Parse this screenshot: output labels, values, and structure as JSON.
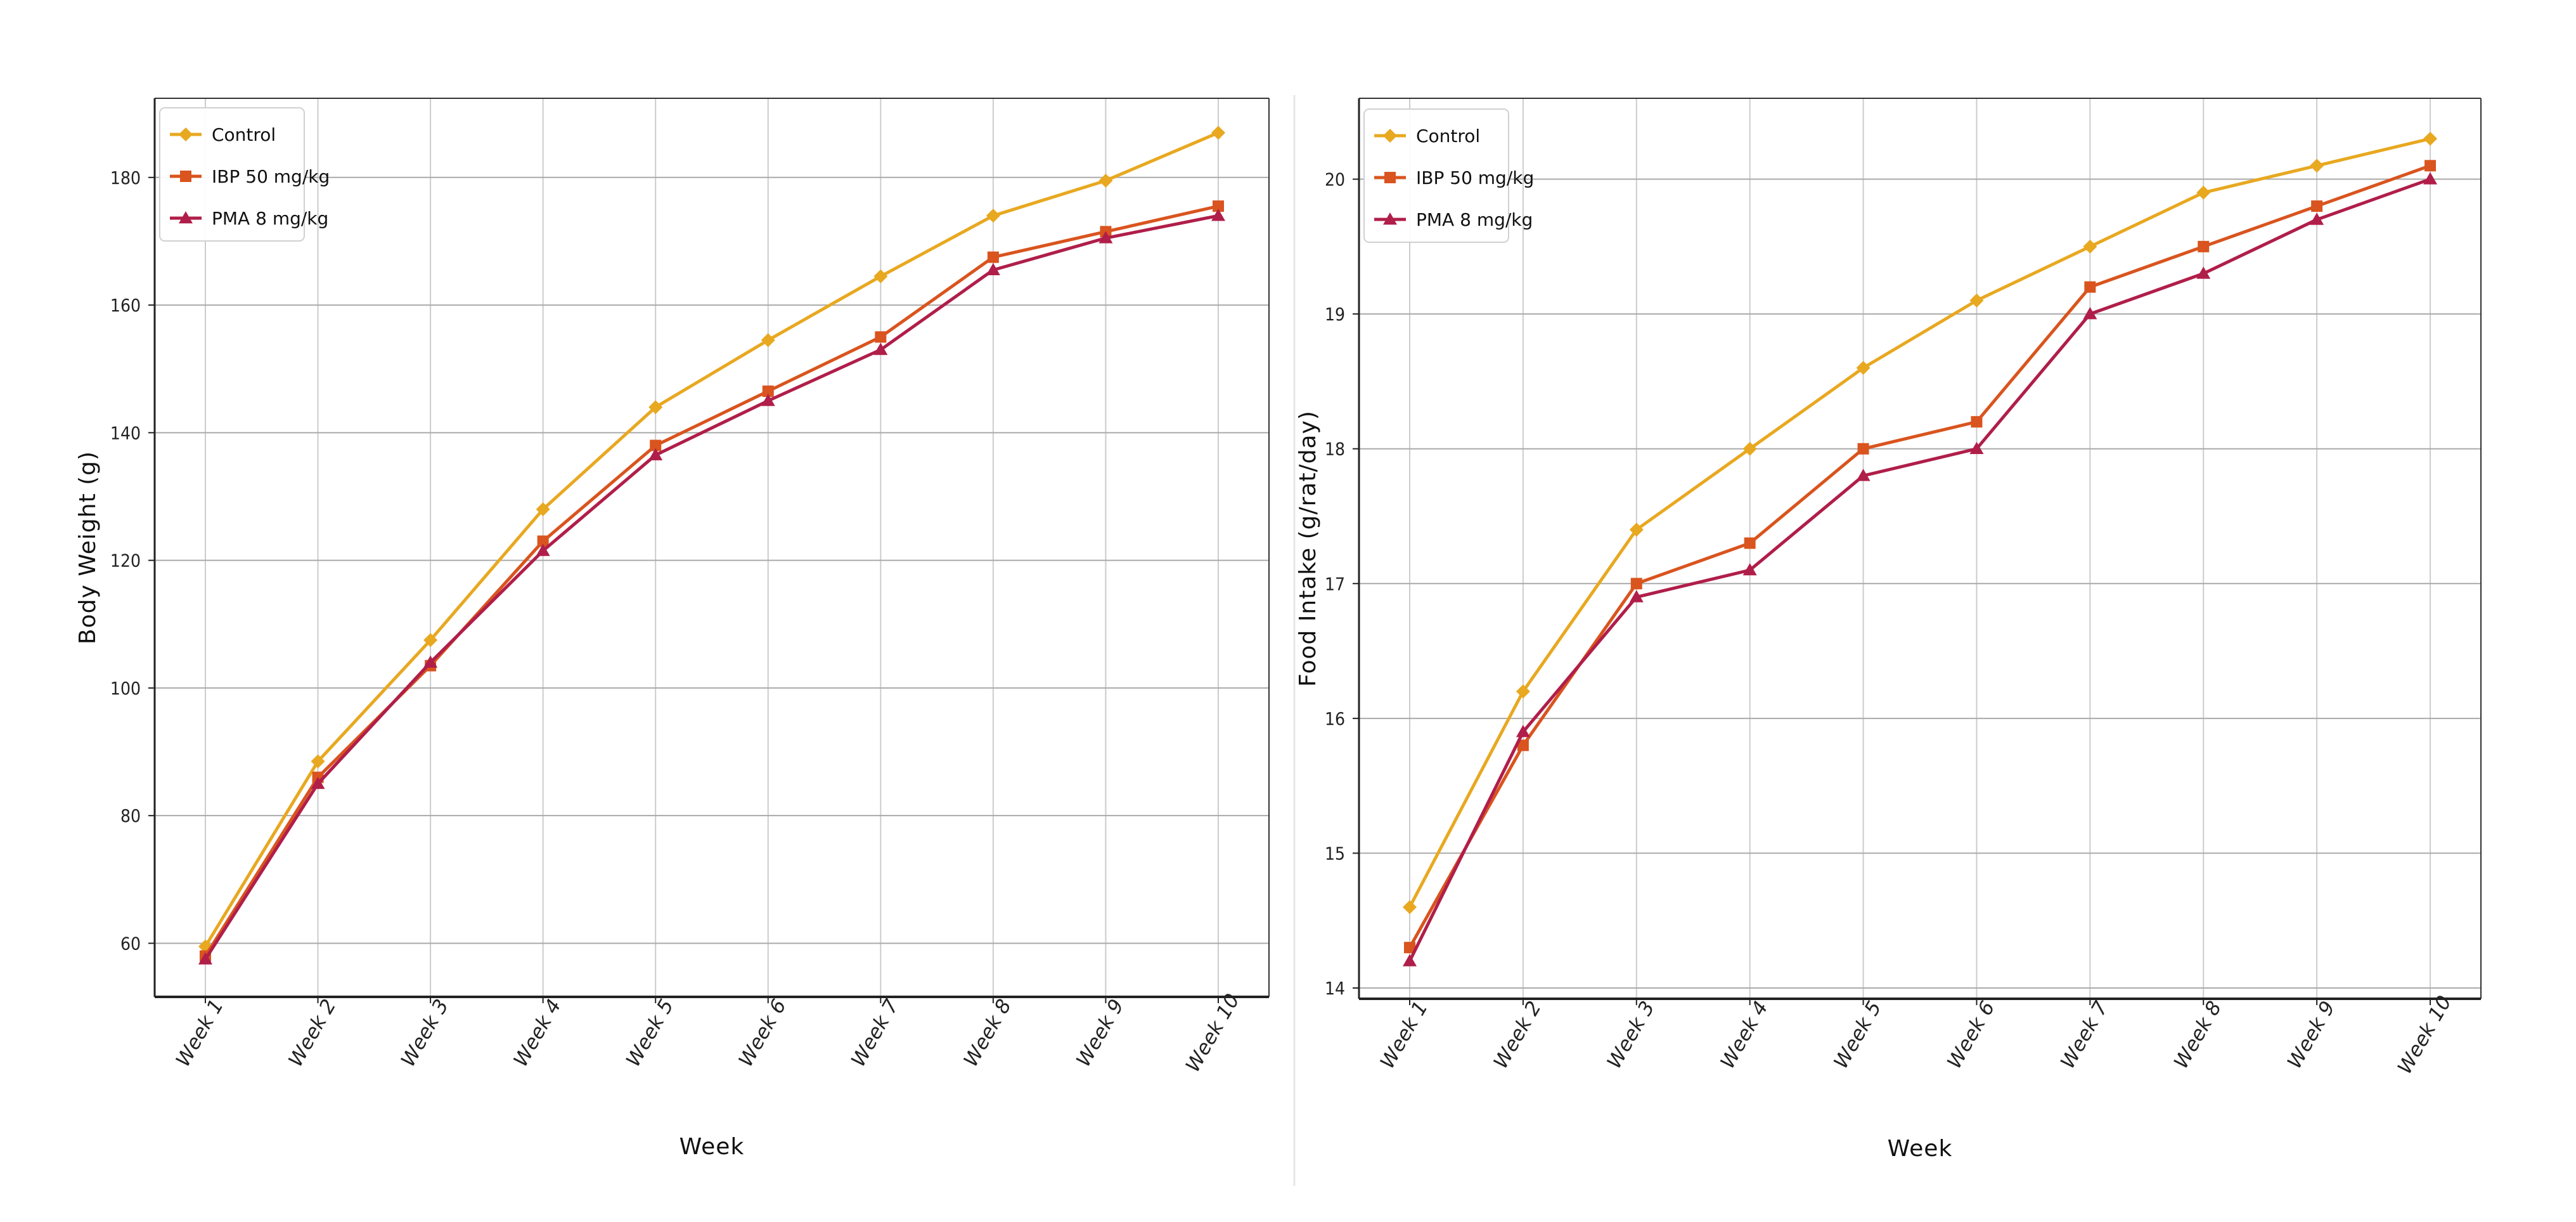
{
  "chart_data": [
    {
      "type": "line",
      "title": "",
      "xlabel": "Week",
      "ylabel": "Body Weight (g)",
      "categories": [
        "Week 1",
        "Week 2",
        "Week 3",
        "Week 4",
        "Week 5",
        "Week 6",
        "Week 7",
        "Week 8",
        "Week 9",
        "Week 10"
      ],
      "ylim": [
        51.6,
        192.4
      ],
      "yticks": [
        60,
        80,
        100,
        120,
        140,
        160,
        180
      ],
      "grid": true,
      "legend_position": "top-left",
      "series": [
        {
          "name": "Control",
          "color": "#E8A820",
          "marker": "diamond",
          "values": [
            59.5,
            88.5,
            107.5,
            128.0,
            144.0,
            154.5,
            164.5,
            174.0,
            179.5,
            187.0
          ]
        },
        {
          "name": "IBP 50 mg/kg",
          "color": "#D9541E",
          "marker": "square",
          "values": [
            58.0,
            86.0,
            103.5,
            123.0,
            138.0,
            146.5,
            155.0,
            167.5,
            171.5,
            175.5
          ]
        },
        {
          "name": "PMA 8 mg/kg",
          "color": "#B01E4A",
          "marker": "triangle",
          "values": [
            57.5,
            85.0,
            104.0,
            121.5,
            136.5,
            145.0,
            153.0,
            165.5,
            170.5,
            174.0
          ]
        }
      ]
    },
    {
      "type": "line",
      "title": "",
      "xlabel": "Week",
      "ylabel": "Food Intake (g/rat/day)",
      "categories": [
        "Week 1",
        "Week 2",
        "Week 3",
        "Week 4",
        "Week 5",
        "Week 6",
        "Week 7",
        "Week 8",
        "Week 9",
        "Week 10"
      ],
      "ylim": [
        13.92,
        20.6
      ],
      "yticks": [
        14,
        15,
        16,
        17,
        18,
        19,
        20
      ],
      "grid": true,
      "legend_position": "top-left",
      "series": [
        {
          "name": "Control",
          "color": "#E8A820",
          "marker": "diamond",
          "values": [
            14.6,
            16.2,
            17.4,
            18.0,
            18.6,
            19.1,
            19.5,
            19.9,
            20.1,
            20.3
          ]
        },
        {
          "name": "IBP 50 mg/kg",
          "color": "#D9541E",
          "marker": "square",
          "values": [
            14.3,
            15.8,
            17.0,
            17.3,
            18.0,
            18.2,
            19.2,
            19.5,
            19.8,
            20.1
          ]
        },
        {
          "name": "PMA 8 mg/kg",
          "color": "#B01E4A",
          "marker": "triangle",
          "values": [
            14.2,
            15.9,
            16.9,
            17.1,
            17.8,
            18.0,
            19.0,
            19.3,
            19.7,
            20.0
          ]
        }
      ]
    }
  ]
}
